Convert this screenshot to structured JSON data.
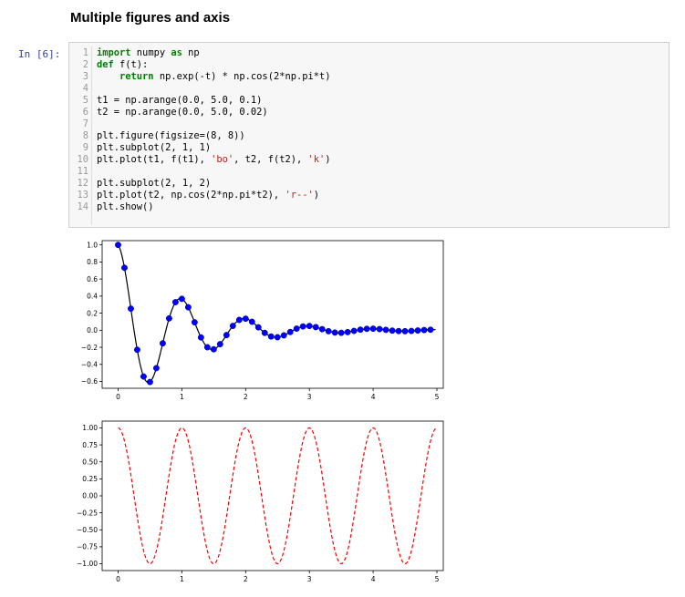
{
  "notebook": {
    "heading": "Multiple figures and axis",
    "prompt": "In [6]:",
    "code_lines": [
      "import numpy as np",
      "def f(t):",
      "    return np.exp(-t) * np.cos(2*np.pi*t)",
      "",
      "t1 = np.arange(0.0, 5.0, 0.1)",
      "t2 = np.arange(0.0, 5.0, 0.02)",
      "",
      "plt.figure(figsize=(8, 8))",
      "plt.subplot(2, 1, 1)",
      "plt.plot(t1, f(t1), 'bo', t2, f(t2), 'k')",
      "",
      "plt.subplot(2, 1, 2)",
      "plt.plot(t2, np.cos(2*np.pi*t2), 'r--')",
      "plt.show()"
    ],
    "line_numbers": [
      "1",
      "2",
      "3",
      "4",
      "5",
      "6",
      "7",
      "8",
      "9",
      "10",
      "11",
      "12",
      "13",
      "14"
    ]
  },
  "chart_data": [
    {
      "type": "line",
      "xlim": [
        -0.25,
        5.1
      ],
      "ylim": [
        -0.68,
        1.05
      ],
      "xticks": [
        "0",
        "1",
        "2",
        "3",
        "4",
        "5"
      ],
      "yticks": [
        "1.0",
        "0.8",
        "0.6",
        "0.4",
        "0.2",
        "0.0",
        "−0.2",
        "−0.4",
        "−0.6"
      ],
      "series": [
        {
          "style": "bo",
          "color": "#0000ff",
          "function": "exp(-t)*cos(2*pi*t)",
          "x_start": 0.0,
          "x_stop": 5.0,
          "x_step": 0.1
        },
        {
          "style": "k",
          "color": "#000000",
          "function": "exp(-t)*cos(2*pi*t)",
          "x_start": 0.0,
          "x_stop": 5.0,
          "x_step": 0.02
        }
      ],
      "grid": false
    },
    {
      "type": "line",
      "xlim": [
        -0.25,
        5.1
      ],
      "ylim": [
        -1.1,
        1.1
      ],
      "xticks": [
        "0",
        "1",
        "2",
        "3",
        "4",
        "5"
      ],
      "yticks": [
        "1.00",
        "0.75",
        "0.50",
        "0.25",
        "0.00",
        "−0.25",
        "−0.50",
        "−0.75",
        "−1.00"
      ],
      "series": [
        {
          "style": "r--",
          "color": "#ff0000",
          "function": "cos(2*pi*t)",
          "x_start": 0.0,
          "x_stop": 5.0,
          "x_step": 0.02
        }
      ],
      "grid": false
    }
  ]
}
